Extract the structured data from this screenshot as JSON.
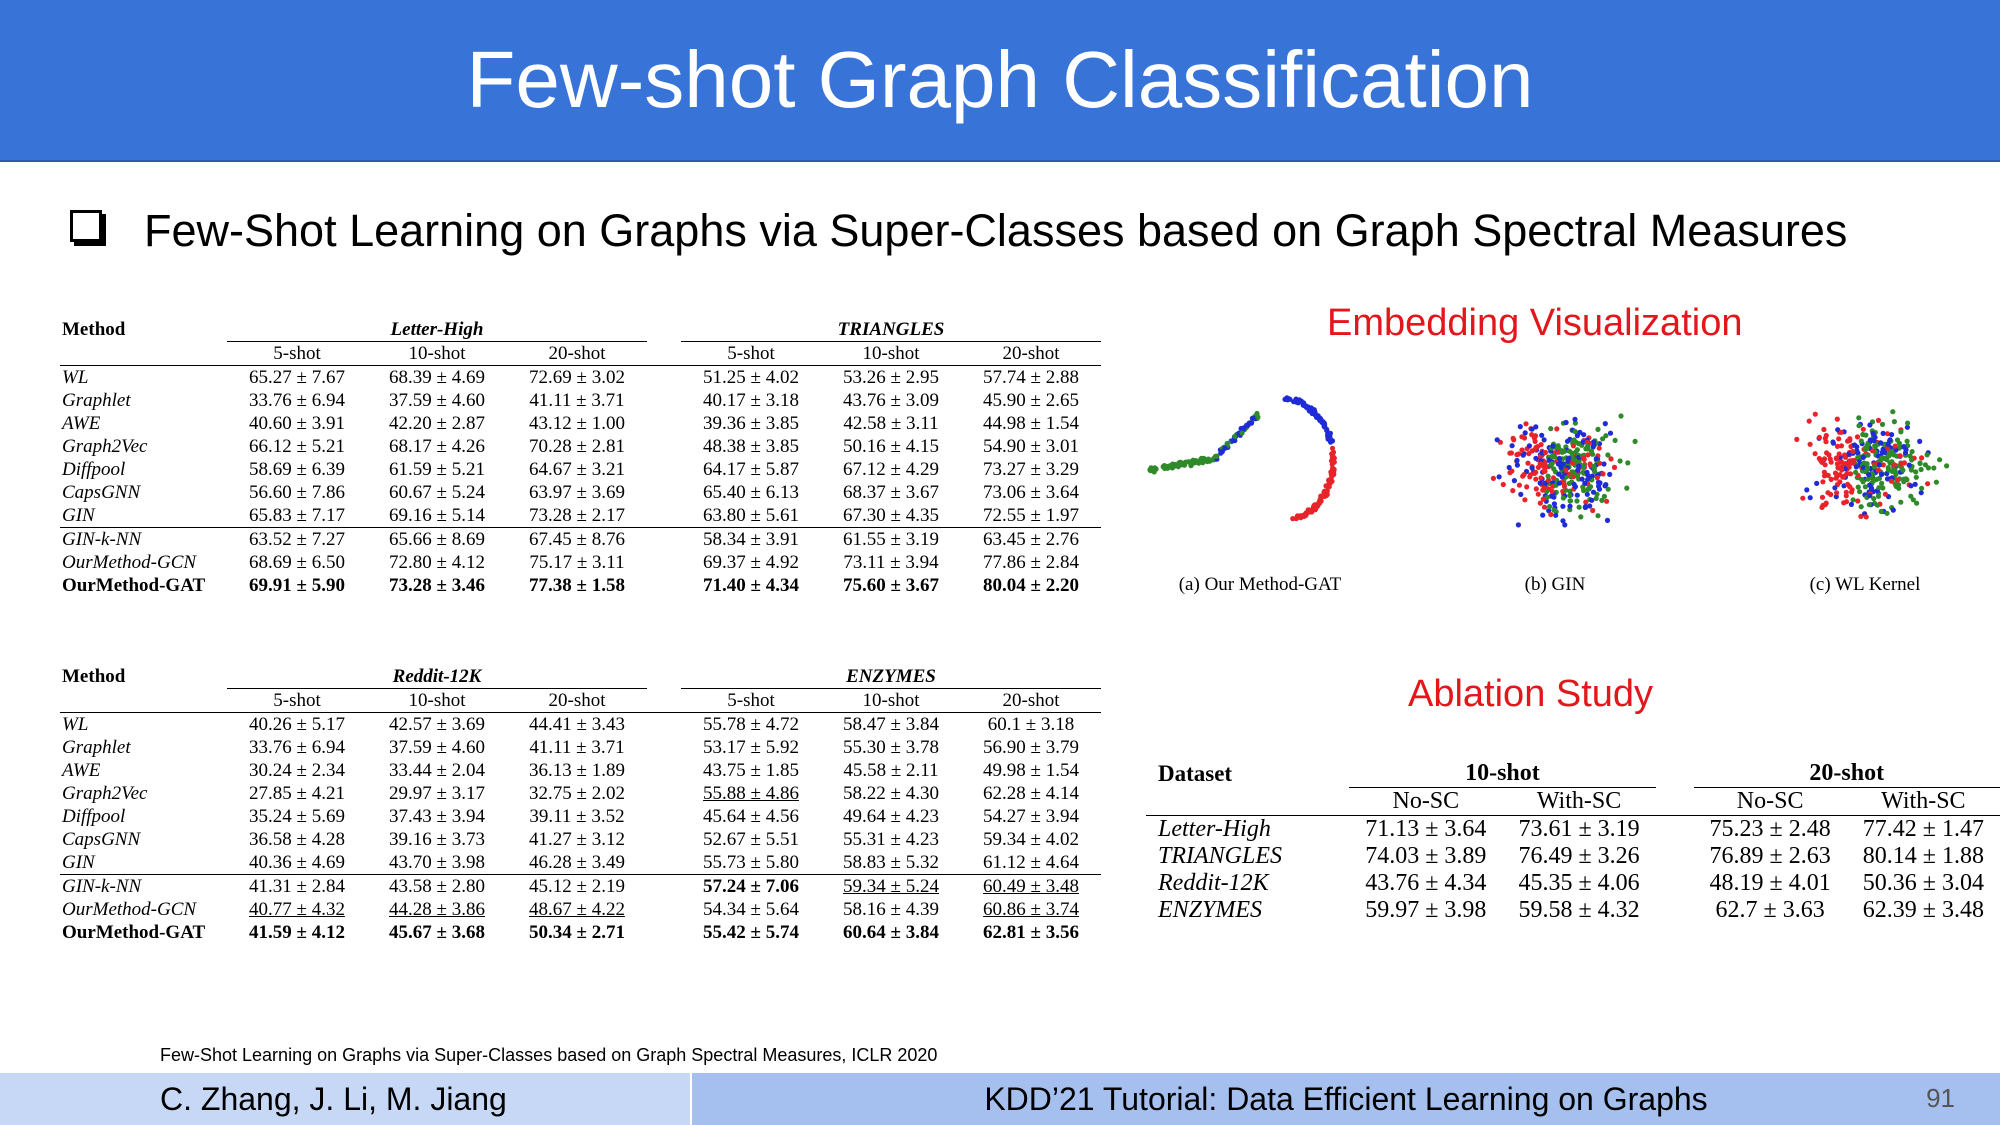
{
  "slide": {
    "title": "Few-shot Graph Classification",
    "subtitle": "Few-Shot Learning on Graphs via Super-Classes based on Graph Spectral Measures",
    "footnote": "Few-Shot Learning on Graphs via Super-Classes based on Graph Spectral Measures, ICLR 2020",
    "footer_left": "C. Zhang, J. Li, M. Jiang",
    "footer_right": "KDD’21 Tutorial: Data Efficient Learning on Graphs",
    "page_number": "91"
  },
  "table1": {
    "method_header": "Method",
    "dataset_a": "Letter-High",
    "dataset_b": "TRIANGLES",
    "shots": [
      "5-shot",
      "10-shot",
      "20-shot",
      "5-shot",
      "10-shot",
      "20-shot"
    ],
    "rows": [
      {
        "method": "WL",
        "values": [
          "65.27 ± 7.67",
          "68.39 ± 4.69",
          "72.69 ± 3.02",
          "51.25 ± 4.02",
          "53.26 ± 2.95",
          "57.74 ± 2.88"
        ]
      },
      {
        "method": "Graphlet",
        "values": [
          "33.76 ± 6.94",
          "37.59 ± 4.60",
          "41.11 ± 3.71",
          "40.17 ± 3.18",
          "43.76 ± 3.09",
          "45.90 ± 2.65"
        ]
      },
      {
        "method": "AWE",
        "values": [
          "40.60 ± 3.91",
          "42.20 ± 2.87",
          "43.12 ± 1.00",
          "39.36 ± 3.85",
          "42.58 ± 3.11",
          "44.98 ± 1.54"
        ]
      },
      {
        "method": "Graph2Vec",
        "values": [
          "66.12 ± 5.21",
          "68.17 ± 4.26",
          "70.28 ± 2.81",
          "48.38 ± 3.85",
          "50.16 ± 4.15",
          "54.90 ± 3.01"
        ]
      },
      {
        "method": "Diffpool",
        "values": [
          "58.69 ± 6.39",
          "61.59 ± 5.21",
          "64.67 ± 3.21",
          "64.17 ± 5.87",
          "67.12 ± 4.29",
          "73.27 ± 3.29"
        ]
      },
      {
        "method": "CapsGNN",
        "values": [
          "56.60 ± 7.86",
          "60.67 ± 5.24",
          "63.97 ± 3.69",
          "65.40 ± 6.13",
          "68.37 ± 3.67",
          "73.06 ± 3.64"
        ]
      },
      {
        "method": "GIN",
        "values": [
          "65.83 ± 7.17",
          "69.16 ± 5.14",
          "73.28 ± 2.17",
          "63.80 ± 5.61",
          "67.30 ± 4.35",
          "72.55 ± 1.97"
        ]
      },
      {
        "method": "GIN-k-NN",
        "values": [
          "63.52 ± 7.27",
          "65.66 ± 8.69",
          "67.45 ± 8.76",
          "58.34 ± 3.91",
          "61.55 ± 3.19",
          "63.45 ± 2.76"
        ]
      },
      {
        "method": "OurMethod-GCN",
        "values": [
          "68.69 ± 6.50",
          "72.80 ± 4.12",
          "75.17 ± 3.11",
          "69.37 ± 4.92",
          "73.11 ± 3.94",
          "77.86 ± 2.84"
        ]
      },
      {
        "method": "OurMethod-GAT",
        "values": [
          "69.91 ± 5.90",
          "73.28 ± 3.46",
          "77.38 ± 1.58",
          "71.40 ± 4.34",
          "75.60 ± 3.67",
          "80.04 ± 2.20"
        ]
      }
    ]
  },
  "table2": {
    "method_header": "Method",
    "dataset_a": "Reddit-12K",
    "dataset_b": "ENZYMES",
    "shots": [
      "5-shot",
      "10-shot",
      "20-shot",
      "5-shot",
      "10-shot",
      "20-shot"
    ],
    "rows": [
      {
        "method": "WL",
        "values": [
          "40.26 ± 5.17",
          "42.57 ± 3.69",
          "44.41 ± 3.43",
          "55.78 ± 4.72",
          "58.47 ± 3.84",
          "60.1 ± 3.18"
        ]
      },
      {
        "method": "Graphlet",
        "values": [
          "33.76 ± 6.94",
          "37.59 ± 4.60",
          "41.11 ± 3.71",
          "53.17 ± 5.92",
          "55.30 ± 3.78",
          "56.90 ± 3.79"
        ]
      },
      {
        "method": "AWE",
        "values": [
          "30.24 ± 2.34",
          "33.44 ± 2.04",
          "36.13 ± 1.89",
          "43.75 ± 1.85",
          "45.58 ± 2.11",
          "49.98 ± 1.54"
        ]
      },
      {
        "method": "Graph2Vec",
        "values": [
          "27.85 ± 4.21",
          "29.97 ± 3.17",
          "32.75 ± 2.02",
          "55.88 ± 4.86",
          "58.22 ± 4.30",
          "62.28 ± 4.14"
        ]
      },
      {
        "method": "Diffpool",
        "values": [
          "35.24 ± 5.69",
          "37.43 ± 3.94",
          "39.11 ± 3.52",
          "45.64 ± 4.56",
          "49.64 ± 4.23",
          "54.27 ± 3.94"
        ]
      },
      {
        "method": "CapsGNN",
        "values": [
          "36.58 ± 4.28",
          "39.16 ± 3.73",
          "41.27 ± 3.12",
          "52.67 ± 5.51",
          "55.31 ± 4.23",
          "59.34 ± 4.02"
        ]
      },
      {
        "method": "GIN",
        "values": [
          "40.36 ± 4.69",
          "43.70 ± 3.98",
          "46.28 ± 3.49",
          "55.73 ± 5.80",
          "58.83 ± 5.32",
          "61.12 ± 4.64"
        ]
      },
      {
        "method": "GIN-k-NN",
        "values": [
          "41.31 ± 2.84",
          "43.58 ± 2.80",
          "45.12 ± 2.19",
          "57.24 ± 7.06",
          "59.34 ± 5.24",
          "60.49 ± 3.48"
        ]
      },
      {
        "method": "OurMethod-GCN",
        "values": [
          "40.77 ± 4.32",
          "44.28 ± 3.86",
          "48.67 ± 4.22",
          "54.34 ± 5.64",
          "58.16 ± 4.39",
          "60.86 ± 3.74"
        ]
      },
      {
        "method": "OurMethod-GAT",
        "values": [
          "41.59 ± 4.12",
          "45.67 ± 3.68",
          "50.34 ± 2.71",
          "55.42 ± 5.74",
          "60.64 ± 3.84",
          "62.81 ± 3.56"
        ]
      }
    ]
  },
  "embedding": {
    "heading": "Embedding Visualization",
    "captions": [
      "(a) Our Method-GAT",
      "(b) GIN",
      "(c) WL Kernel"
    ],
    "colors": {
      "red": "#e8242a",
      "blue": "#1f2bd6",
      "green": "#2f8a2a"
    }
  },
  "ablation": {
    "heading": "Ablation Study",
    "dataset_header": "Dataset",
    "group_a": "10-shot",
    "group_b": "20-shot",
    "subheaders": [
      "No-SC",
      "With-SC",
      "No-SC",
      "With-SC"
    ],
    "rows": [
      {
        "dataset": "Letter-High",
        "values": [
          "71.13 ± 3.64",
          "73.61 ± 3.19",
          "75.23 ± 2.48",
          "77.42 ± 1.47"
        ]
      },
      {
        "dataset": "TRIANGLES",
        "values": [
          "74.03 ± 3.89",
          "76.49 ± 3.26",
          "76.89 ± 2.63",
          "80.14 ± 1.88"
        ]
      },
      {
        "dataset": "Reddit-12K",
        "values": [
          "43.76 ± 4.34",
          "45.35 ± 4.06",
          "48.19 ± 4.01",
          "50.36 ± 3.04"
        ]
      },
      {
        "dataset": "ENZYMES",
        "values": [
          "59.97 ± 3.98",
          "59.58 ± 4.32",
          "62.7 ± 3.63",
          "62.39 ± 3.48"
        ]
      }
    ]
  }
}
